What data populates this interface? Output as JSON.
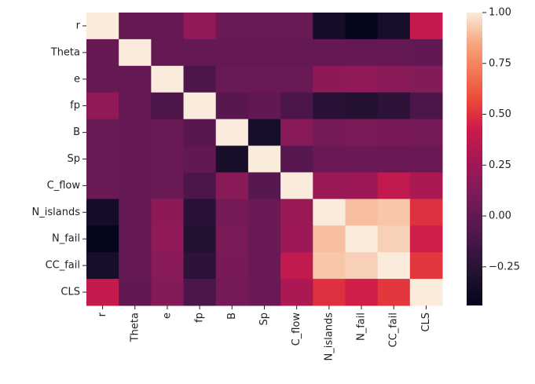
{
  "chart_data": {
    "type": "heatmap",
    "title": "",
    "xlabel": "",
    "ylabel": "",
    "x_labels": [
      "r",
      "Theta",
      "e",
      "fp",
      "B",
      "Sp",
      "C_flow",
      "N_islands",
      "N_fail",
      "CC_fail",
      "CLS"
    ],
    "y_labels": [
      "r",
      "Theta",
      "e",
      "fp",
      "B",
      "Sp",
      "C_flow",
      "N_islands",
      "N_fail",
      "CC_fail",
      "CLS"
    ],
    "values": [
      [
        1.0,
        0.02,
        0.02,
        0.2,
        0.03,
        0.03,
        0.03,
        -0.35,
        -0.43,
        -0.33,
        0.4
      ],
      [
        0.02,
        1.0,
        0.01,
        0.01,
        0.01,
        0.01,
        0.01,
        0.01,
        0.01,
        0.01,
        0.0
      ],
      [
        0.02,
        0.01,
        1.0,
        -0.1,
        0.03,
        0.03,
        0.03,
        0.18,
        0.2,
        0.16,
        0.14
      ],
      [
        0.2,
        0.01,
        -0.1,
        1.0,
        -0.04,
        0.0,
        -0.1,
        -0.25,
        -0.28,
        -0.24,
        -0.1
      ],
      [
        0.03,
        0.01,
        0.03,
        -0.04,
        1.0,
        -0.33,
        0.16,
        0.08,
        0.1,
        0.09,
        0.08
      ],
      [
        0.03,
        0.01,
        0.03,
        0.0,
        -0.33,
        1.0,
        -0.05,
        0.04,
        0.04,
        0.04,
        0.04
      ],
      [
        0.03,
        0.01,
        0.03,
        -0.1,
        0.16,
        -0.05,
        1.0,
        0.23,
        0.24,
        0.38,
        0.3
      ],
      [
        -0.35,
        0.01,
        0.18,
        -0.25,
        0.08,
        0.04,
        0.23,
        1.0,
        0.9,
        0.92,
        0.5
      ],
      [
        -0.43,
        0.01,
        0.2,
        -0.28,
        0.1,
        0.04,
        0.24,
        0.9,
        1.0,
        0.94,
        0.44
      ],
      [
        -0.33,
        0.01,
        0.16,
        -0.24,
        0.09,
        0.04,
        0.38,
        0.92,
        0.94,
        1.0,
        0.52
      ],
      [
        0.4,
        0.0,
        0.14,
        -0.1,
        0.08,
        0.04,
        0.3,
        0.5,
        0.44,
        0.52,
        1.0
      ]
    ],
    "vmin": -0.44,
    "vmax": 1.0,
    "colormap": "rocket",
    "colorbar_ticks": [
      1.0,
      0.75,
      0.5,
      0.25,
      0.0,
      -0.25
    ],
    "colorbar_tick_labels": [
      "1.00",
      "0.75",
      "0.50",
      "0.25",
      "0.00",
      "−0.25"
    ],
    "grid": false,
    "legend": "colorbar-right"
  }
}
